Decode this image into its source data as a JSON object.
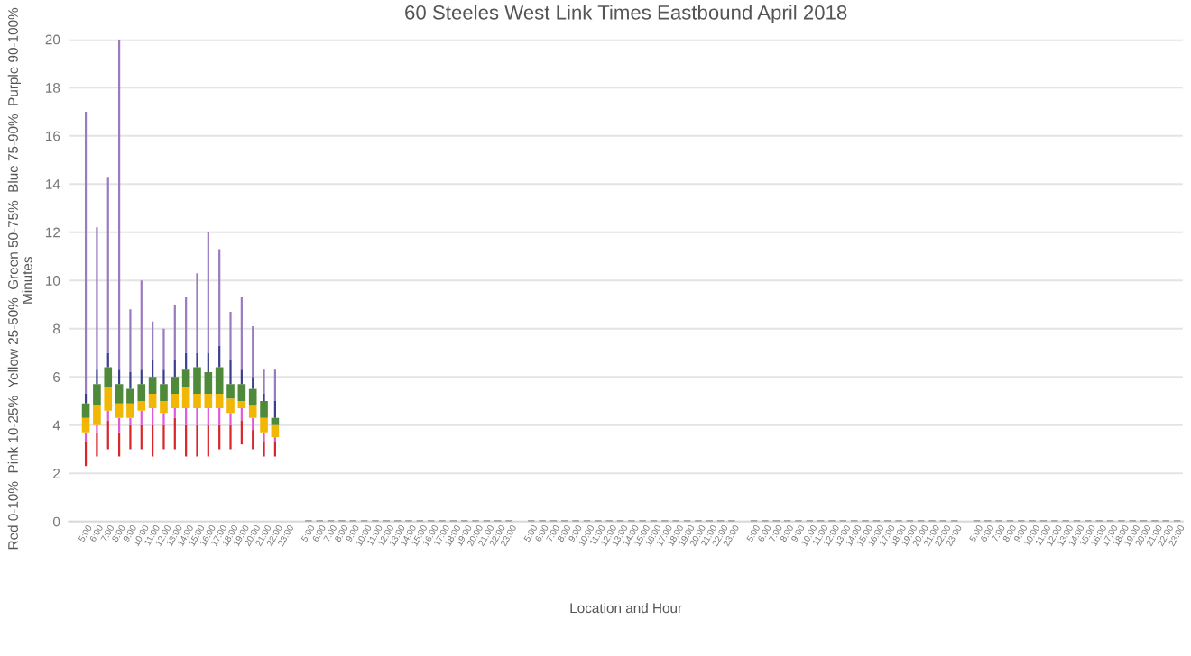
{
  "chart_data": {
    "type": "bar",
    "title": "60 Steeles West Link Times Eastbound April 2018",
    "xlabel": "Location and Hour",
    "ylabel": "Minutes",
    "annotations": [
      "Red 0-10%  Pink 10-25%  Yellow 25-50%  Green 50-75%  Blue 75-90%  Purple 90-100%"
    ],
    "grid": "y",
    "ylim": [
      0,
      20
    ],
    "yticks": [
      0,
      2,
      4,
      6,
      8,
      10,
      12,
      14,
      16,
      18,
      20
    ],
    "categories": [
      "5:00",
      "6:00",
      "7:00",
      "8:00",
      "9:00",
      "10:00",
      "11:00",
      "12:00",
      "13:00",
      "14:00",
      "15:00",
      "16:00",
      "17:00",
      "18:00",
      "19:00",
      "20:00",
      "21:00",
      "22:00",
      "23:00",
      null,
      "5:00",
      "6:00",
      "7:00",
      "8:00",
      "9:00",
      "10:00",
      "11:00",
      "12:00",
      "13:00",
      "14:00",
      "15:00",
      "16:00",
      "17:00",
      "18:00",
      "19:00",
      "20:00",
      "21:00",
      "22:00",
      "23:00",
      null,
      "5:00",
      "6:00",
      "7:00",
      "8:00",
      "9:00",
      "10:00",
      "11:00",
      "12:00",
      "13:00",
      "14:00",
      "15:00",
      "16:00",
      "17:00",
      "18:00",
      "19:00",
      "20:00",
      "21:00",
      "22:00",
      "23:00",
      null,
      "5:00",
      "6:00",
      "7:00",
      "8:00",
      "9:00",
      "10:00",
      "11:00",
      "12:00",
      "13:00",
      "14:00",
      "15:00",
      "16:00",
      "17:00",
      "18:00",
      "19:00",
      "20:00",
      "21:00",
      "22:00",
      "23:00",
      null,
      "5:00",
      "6:00",
      "7:00",
      "8:00",
      "9:00",
      "10:00",
      "11:00",
      "12:00",
      "13:00",
      "14:00",
      "15:00",
      "16:00",
      "17:00",
      "18:00",
      "19:00",
      "20:00",
      "21:00",
      "22:00",
      "23:00"
    ],
    "series": [
      {
        "color": "#d9262b",
        "base": [
          2.3,
          2.7,
          3.0,
          2.7,
          3.0,
          3.0,
          2.7,
          3.0,
          3.0,
          2.7,
          2.7,
          2.7,
          3.0,
          3.0,
          3.2,
          3.0,
          2.7,
          2.7,
          null,
          null,
          null,
          null,
          null,
          null,
          null,
          null,
          null,
          null,
          null,
          null,
          null,
          null,
          null,
          null,
          null,
          null,
          null,
          null,
          null,
          null,
          null,
          null,
          null,
          null,
          null,
          null,
          null,
          null,
          null,
          null,
          null,
          null,
          null,
          null,
          null,
          null,
          null,
          null,
          null,
          null,
          null,
          null,
          null,
          null,
          null,
          null,
          null,
          null,
          null,
          null,
          null,
          null,
          null,
          null,
          null,
          null,
          null,
          null,
          null,
          null,
          null,
          null,
          null,
          null,
          null,
          null,
          null,
          null,
          null,
          null,
          null,
          null,
          null,
          null,
          null,
          null,
          null,
          null,
          null
        ],
        "values": [
          1.0,
          1.0,
          1.2,
          1.0,
          1.0,
          1.0,
          1.3,
          1.0,
          1.3,
          1.3,
          1.3,
          1.3,
          1.0,
          1.0,
          1.0,
          0.8,
          0.6,
          0.6,
          null,
          null,
          null,
          null,
          null,
          null,
          null,
          null,
          null,
          null,
          null,
          null,
          null,
          null,
          null,
          null,
          null,
          null,
          null,
          null,
          null,
          null,
          null,
          null,
          null,
          null,
          null,
          null,
          null,
          null,
          null,
          null,
          null,
          null,
          null,
          null,
          null,
          null,
          null,
          null,
          null,
          null,
          null,
          null,
          null,
          null,
          null,
          null,
          null,
          null,
          null,
          null,
          null,
          null,
          null,
          null,
          null,
          null,
          null,
          null,
          null,
          null,
          null,
          null,
          null,
          null,
          null,
          null,
          null,
          null,
          null,
          null,
          null,
          null,
          null,
          null,
          null,
          null,
          null,
          null,
          null
        ]
      },
      {
        "color": "#e05ad8",
        "base": [
          3.3,
          3.7,
          4.2,
          3.7,
          4.0,
          4.0,
          4.0,
          4.0,
          4.3,
          4.0,
          4.0,
          4.0,
          4.0,
          4.0,
          4.2,
          3.8,
          3.3,
          3.3,
          null,
          null,
          null,
          null,
          null,
          null,
          null,
          null,
          null,
          null,
          null,
          null,
          null,
          null,
          null,
          null,
          null,
          null,
          null,
          null,
          null,
          null,
          null,
          null,
          null,
          null,
          null,
          null,
          null,
          null,
          null,
          null,
          null,
          null,
          null,
          null,
          null,
          null,
          null,
          null,
          null,
          null,
          null,
          null,
          null,
          null,
          null,
          null,
          null,
          null,
          null,
          null,
          null,
          null,
          null,
          null,
          null,
          null,
          null,
          null,
          null,
          null,
          null,
          null,
          null,
          null,
          null,
          null,
          null,
          null,
          null,
          null,
          null,
          null,
          null,
          null,
          null,
          null,
          null,
          null,
          null
        ],
        "values": [
          0.4,
          0.3,
          0.4,
          0.6,
          0.3,
          0.6,
          0.7,
          0.5,
          0.4,
          0.7,
          0.7,
          0.7,
          0.7,
          0.5,
          0.5,
          0.5,
          0.4,
          0.2,
          null,
          null,
          null,
          null,
          null,
          null,
          null,
          null,
          null,
          null,
          null,
          null,
          null,
          null,
          null,
          null,
          null,
          null,
          null,
          null,
          null,
          null,
          null,
          null,
          null,
          null,
          null,
          null,
          null,
          null,
          null,
          null,
          null,
          null,
          null,
          null,
          null,
          null,
          null,
          null,
          null,
          null,
          null,
          null,
          null,
          null,
          null,
          null,
          null,
          null,
          null,
          null,
          null,
          null,
          null,
          null,
          null,
          null,
          null,
          null,
          null,
          null,
          null,
          null,
          null,
          null,
          null,
          null,
          null,
          null,
          null,
          null,
          null,
          null,
          null,
          null,
          null,
          null,
          null,
          null,
          null
        ]
      },
      {
        "color": "#f2b705",
        "base": [
          3.7,
          4.0,
          4.6,
          4.3,
          4.3,
          4.6,
          4.7,
          4.5,
          4.7,
          4.7,
          4.7,
          4.7,
          4.7,
          4.5,
          4.7,
          4.3,
          3.7,
          3.5,
          null,
          null,
          null,
          null,
          null,
          null,
          null,
          null,
          null,
          null,
          null,
          null,
          null,
          null,
          null,
          null,
          null,
          null,
          null,
          null,
          null,
          null,
          null,
          null,
          null,
          null,
          null,
          null,
          null,
          null,
          null,
          null,
          null,
          null,
          null,
          null,
          null,
          null,
          null,
          null,
          null,
          null,
          null,
          null,
          null,
          null,
          null,
          null,
          null,
          null,
          null,
          null,
          null,
          null,
          null,
          null,
          null,
          null,
          null,
          null,
          null,
          null,
          null,
          null,
          null,
          null,
          null,
          null,
          null,
          null,
          null,
          null,
          null,
          null,
          null,
          null,
          null,
          null,
          null,
          null,
          null
        ],
        "values": [
          0.6,
          0.8,
          1.0,
          0.6,
          0.6,
          0.4,
          0.6,
          0.5,
          0.6,
          0.9,
          0.6,
          0.6,
          0.6,
          0.6,
          0.3,
          0.5,
          0.6,
          0.5,
          null,
          null,
          null,
          null,
          null,
          null,
          null,
          null,
          null,
          null,
          null,
          null,
          null,
          null,
          null,
          null,
          null,
          null,
          null,
          null,
          null,
          null,
          null,
          null,
          null,
          null,
          null,
          null,
          null,
          null,
          null,
          null,
          null,
          null,
          null,
          null,
          null,
          null,
          null,
          null,
          null,
          null,
          null,
          null,
          null,
          null,
          null,
          null,
          null,
          null,
          null,
          null,
          null,
          null,
          null,
          null,
          null,
          null,
          null,
          null,
          null,
          null,
          null,
          null,
          null,
          null,
          null,
          null,
          null,
          null,
          null,
          null,
          null,
          null,
          null,
          null,
          null,
          null,
          null,
          null,
          null
        ]
      },
      {
        "color": "#4f8a3a",
        "base": [
          4.3,
          4.8,
          5.6,
          4.9,
          4.9,
          5.0,
          5.3,
          5.0,
          5.3,
          5.6,
          5.3,
          5.3,
          5.3,
          5.1,
          5.0,
          4.8,
          4.3,
          4.0,
          null,
          null,
          null,
          null,
          null,
          null,
          null,
          null,
          null,
          null,
          null,
          null,
          null,
          null,
          null,
          null,
          null,
          null,
          null,
          null,
          null,
          null,
          null,
          null,
          null,
          null,
          null,
          null,
          null,
          null,
          null,
          null,
          null,
          null,
          null,
          null,
          null,
          null,
          null,
          null,
          null,
          null,
          null,
          null,
          null,
          null,
          null,
          null,
          null,
          null,
          null,
          null,
          null,
          null,
          null,
          null,
          null,
          null,
          null,
          null,
          null,
          null,
          null,
          null,
          null,
          null,
          null,
          null,
          null,
          null,
          null,
          null,
          null,
          null,
          null,
          null,
          null,
          null,
          null,
          null,
          null
        ],
        "values": [
          0.6,
          0.9,
          0.8,
          0.8,
          0.6,
          0.7,
          0.7,
          0.7,
          0.7,
          0.7,
          1.1,
          0.9,
          1.1,
          0.6,
          0.7,
          0.7,
          0.7,
          0.3,
          null,
          null,
          null,
          null,
          null,
          null,
          null,
          null,
          null,
          null,
          null,
          null,
          null,
          null,
          null,
          null,
          null,
          null,
          null,
          null,
          null,
          null,
          null,
          null,
          null,
          null,
          null,
          null,
          null,
          null,
          null,
          null,
          null,
          null,
          null,
          null,
          null,
          null,
          null,
          null,
          null,
          null,
          null,
          null,
          null,
          null,
          null,
          null,
          null,
          null,
          null,
          null,
          null,
          null,
          null,
          null,
          null,
          null,
          null,
          null,
          null,
          null,
          null,
          null,
          null,
          null,
          null,
          null,
          null,
          null,
          null,
          null,
          null,
          null,
          null,
          null,
          null,
          null,
          null,
          null,
          null
        ]
      },
      {
        "color": "#3b3f8f",
        "base": [
          4.9,
          5.7,
          6.4,
          5.7,
          5.5,
          5.7,
          6.0,
          5.7,
          6.0,
          6.3,
          6.4,
          6.2,
          6.4,
          5.7,
          5.7,
          5.5,
          5.0,
          4.3,
          null,
          null,
          null,
          null,
          null,
          null,
          null,
          null,
          null,
          null,
          null,
          null,
          null,
          null,
          null,
          null,
          null,
          null,
          null,
          null,
          null,
          null,
          null,
          null,
          null,
          null,
          null,
          null,
          null,
          null,
          null,
          null,
          null,
          null,
          null,
          null,
          null,
          null,
          null,
          null,
          null,
          null,
          null,
          null,
          null,
          null,
          null,
          null,
          null,
          null,
          null,
          null,
          null,
          null,
          null,
          null,
          null,
          null,
          null,
          null,
          null,
          null,
          null,
          null,
          null,
          null,
          null,
          null,
          null,
          null,
          null,
          null,
          null,
          null,
          null,
          null,
          null,
          null,
          null,
          null,
          null
        ],
        "values": [
          0.4,
          0.6,
          0.6,
          0.6,
          0.7,
          0.6,
          0.7,
          0.6,
          0.7,
          0.7,
          0.6,
          0.8,
          0.9,
          1.0,
          0.6,
          0.5,
          0.3,
          0.7,
          null,
          null,
          null,
          null,
          null,
          null,
          null,
          null,
          null,
          null,
          null,
          null,
          null,
          null,
          null,
          null,
          null,
          null,
          null,
          null,
          null,
          null,
          null,
          null,
          null,
          null,
          null,
          null,
          null,
          null,
          null,
          null,
          null,
          null,
          null,
          null,
          null,
          null,
          null,
          null,
          null,
          null,
          null,
          null,
          null,
          null,
          null,
          null,
          null,
          null,
          null,
          null,
          null,
          null,
          null,
          null,
          null,
          null,
          null,
          null,
          null,
          null,
          null,
          null,
          null,
          null,
          null,
          null,
          null,
          null,
          null,
          null,
          null,
          null,
          null,
          null,
          null,
          null,
          null,
          null,
          null
        ]
      },
      {
        "color": "#9b7bc0",
        "base": [
          5.3,
          6.3,
          7.0,
          6.3,
          6.2,
          6.3,
          6.7,
          6.3,
          6.7,
          7.0,
          7.0,
          7.0,
          7.3,
          6.7,
          6.3,
          6.0,
          5.3,
          5.0,
          null,
          null,
          null,
          null,
          null,
          null,
          null,
          null,
          null,
          null,
          null,
          null,
          null,
          null,
          null,
          null,
          null,
          null,
          null,
          null,
          null,
          null,
          null,
          null,
          null,
          null,
          null,
          null,
          null,
          null,
          null,
          null,
          null,
          null,
          null,
          null,
          null,
          null,
          null,
          null,
          null,
          null,
          null,
          null,
          null,
          null,
          null,
          null,
          null,
          null,
          null,
          null,
          null,
          null,
          null,
          null,
          null,
          null,
          null,
          null,
          null,
          null,
          null,
          null,
          null,
          null,
          null,
          null,
          null,
          null,
          null,
          null,
          null,
          null,
          null,
          null,
          null,
          null,
          null,
          null,
          null
        ],
        "values": [
          11.7,
          5.9,
          7.3,
          13.7,
          2.6,
          3.7,
          1.6,
          1.7,
          2.3,
          2.3,
          3.3,
          5.0,
          4.0,
          2.0,
          3.0,
          2.1,
          1.0,
          1.3,
          null,
          null,
          null,
          null,
          null,
          null,
          null,
          null,
          null,
          null,
          null,
          null,
          null,
          null,
          null,
          null,
          null,
          null,
          null,
          null,
          null,
          null,
          null,
          null,
          null,
          null,
          null,
          null,
          null,
          null,
          null,
          null,
          null,
          null,
          null,
          null,
          null,
          null,
          null,
          null,
          null,
          null,
          null,
          null,
          null,
          null,
          null,
          null,
          null,
          null,
          null,
          null,
          null,
          null,
          null,
          null,
          null,
          null,
          null,
          null,
          null,
          null,
          null,
          null,
          null,
          null,
          null,
          null,
          null,
          null,
          null,
          null,
          null,
          null,
          null,
          null,
          null,
          null,
          null,
          null,
          null
        ]
      },
      {
        "color": "#a6a6a6",
        "values": [
          null,
          null,
          null,
          null,
          null,
          null,
          null,
          null,
          null,
          null,
          null,
          null,
          null,
          null,
          null,
          null,
          null,
          null,
          null,
          null,
          0,
          0,
          0,
          0,
          0,
          0,
          0,
          0,
          0,
          0,
          0,
          0,
          0,
          0,
          0,
          0,
          0,
          0,
          0,
          null,
          0,
          0,
          0,
          0,
          0,
          0,
          0,
          0,
          0,
          0,
          0,
          0,
          0,
          0,
          0,
          0,
          0,
          0,
          0,
          null,
          0,
          0,
          0,
          0,
          0,
          0,
          0,
          0,
          0,
          0,
          0,
          0,
          0,
          0,
          0,
          0,
          0,
          0,
          0,
          null,
          0,
          0,
          0,
          0,
          0,
          0,
          0,
          0,
          0,
          0,
          0,
          0,
          0,
          0,
          0,
          0,
          0,
          0,
          0
        ]
      }
    ]
  }
}
